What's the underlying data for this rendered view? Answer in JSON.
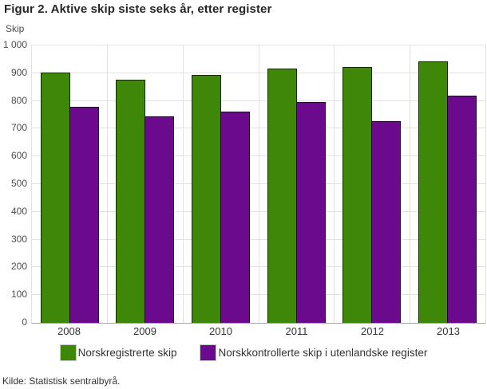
{
  "chart_data": {
    "type": "bar",
    "title": "Figur 2. Aktive skip siste seks år, etter register",
    "ylabel": "Skip",
    "xlabel": "",
    "categories": [
      "2008",
      "2009",
      "2010",
      "2011",
      "2012",
      "2013"
    ],
    "series": [
      {
        "name": "Norskregistrerte skip",
        "color": "#3e8708",
        "values": [
          903,
          875,
          893,
          916,
          921,
          943
        ]
      },
      {
        "name": "Norskkontrollerte skip i utenlandske register",
        "color": "#6b0a8c",
        "values": [
          778,
          745,
          762,
          797,
          727,
          820
        ]
      }
    ],
    "ylim": [
      0,
      1000
    ],
    "ytick_interval": 100,
    "ytick_labels": [
      "0",
      "100",
      "200",
      "300",
      "400",
      "500",
      "600",
      "700",
      "800",
      "900",
      "1 000"
    ],
    "grid": true,
    "legend_position": "bottom"
  },
  "source_note": "Kilde: Statistisk sentralbyrå.",
  "colors": {
    "green": "#3e8708",
    "purple": "#6b0a8c",
    "gridline": "#e2e2e2",
    "axis_line": "#a6a6a6",
    "title_text": "#262626",
    "tick_text": "#4d4d4d"
  }
}
